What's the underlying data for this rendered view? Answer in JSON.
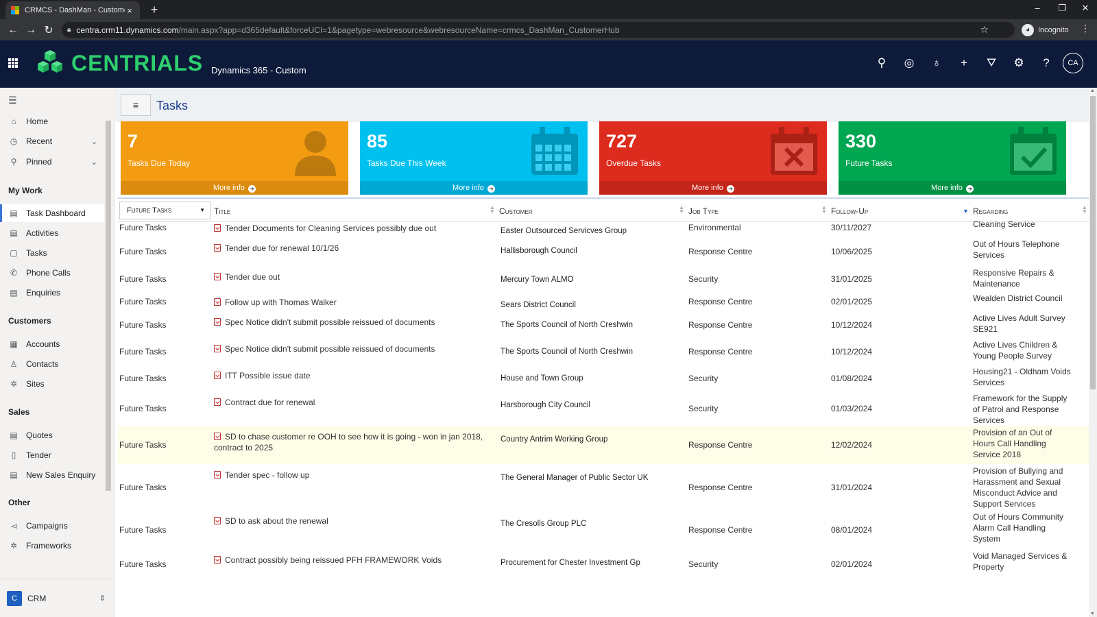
{
  "browser": {
    "tab_title": "CRMCS - DashMan - Customer H",
    "tab_close": "×",
    "new_tab": "+",
    "url_host": "centra.crm11.dynamics.com",
    "url_path": "/main.aspx?app=d365default&forceUCI=1&pagetype=webresource&webresourceName=crmcs_DashMan_CustomerHub",
    "incognito_label": "Incognito"
  },
  "header": {
    "logo_text": "CENTRIALS",
    "app_name": "Dynamics 365 - Custom",
    "user_initials": "CA",
    "brand_color": "#2ed06e",
    "icons": [
      "search-icon",
      "task-check-icon",
      "lightbulb-icon",
      "plus-icon",
      "filter-icon",
      "gear-icon",
      "help-icon"
    ]
  },
  "sidebar": {
    "top_items": [
      {
        "label": "Home",
        "icon": "home-icon"
      },
      {
        "label": "Recent",
        "icon": "clock-icon"
      },
      {
        "label": "Pinned",
        "icon": "pin-icon"
      }
    ],
    "groups": [
      {
        "title": "My Work",
        "items": [
          "Task Dashboard",
          "Activities",
          "Tasks",
          "Phone Calls",
          "Enquiries"
        ]
      },
      {
        "title": "Customers",
        "items": [
          "Accounts",
          "Contacts",
          "Sites"
        ]
      },
      {
        "title": "Sales",
        "items": [
          "Quotes",
          "Tender",
          "New Sales Enquiry"
        ]
      },
      {
        "title": "Other",
        "items": [
          "Campaigns",
          "Frameworks"
        ]
      }
    ],
    "active_item": "Task Dashboard",
    "area_badge": "C",
    "area_label": "CRM"
  },
  "page": {
    "title": "Tasks"
  },
  "tiles": [
    {
      "value": "7",
      "label": "Tasks Due Today",
      "more": "More info",
      "color": "#f39c12",
      "footer_color": "#db8c0f",
      "icon": "user-icon"
    },
    {
      "value": "85",
      "label": "Tasks Due This Week",
      "more": "More info",
      "color": "#00c0ef",
      "footer_color": "#00a8d4",
      "icon": "calendar-icon"
    },
    {
      "value": "727",
      "label": "Overdue Tasks",
      "more": "More info",
      "color": "#dd2b1d",
      "footer_color": "#c4251a",
      "icon": "calendar-x-icon"
    },
    {
      "value": "330",
      "label": "Future Tasks",
      "more": "More info",
      "color": "#00a650",
      "footer_color": "#009145",
      "icon": "calendar-check-icon"
    }
  ],
  "table": {
    "view": "Future Tasks",
    "columns": [
      "Title",
      "Customer",
      "Job Type",
      "Follow-Up",
      "Regarding"
    ],
    "rows": [
      {
        "status": "Future Tasks",
        "title": "Tender Documents for Cleaning Services possibly due out",
        "customer": "Easter Outsourced Servicves Group",
        "job_type": "Environmental",
        "follow_up": "30/11/2027",
        "regarding": "Cleaning Service"
      },
      {
        "status": "Future Tasks",
        "title": "Tender due for renewal 10/1/26",
        "customer": "Hallisborough  Council",
        "job_type": "Response Centre",
        "follow_up": "10/06/2025",
        "regarding": "Out of Hours Telephone Services"
      },
      {
        "status": "Future Tasks",
        "title": "Tender due out",
        "customer": "Mercury Town ALMO",
        "job_type": "Security",
        "follow_up": "31/01/2025",
        "regarding": "Responsive Repairs & Maintenance"
      },
      {
        "status": "Future Tasks",
        "title": "Follow up with Thomas Walker",
        "customer": "Sears District Council",
        "job_type": "Response Centre",
        "follow_up": "02/01/2025",
        "regarding": "Wealden District Council"
      },
      {
        "status": "Future Tasks",
        "title": "Spec Notice didn't submit possible reissued of documents",
        "customer": "The Sports Council of North Creshwin",
        "job_type": "Response Centre",
        "follow_up": "10/12/2024",
        "regarding": "Active Lives Adult Survey SE921"
      },
      {
        "status": "Future Tasks",
        "title": "Spec Notice didn't submit possible reissued of documents",
        "customer": "The Sports Council of North Creshwin",
        "job_type": "Response Centre",
        "follow_up": "10/12/2024",
        "regarding": "Active Lives Children & Young People Survey"
      },
      {
        "status": "Future Tasks",
        "title": "ITT Possible issue date",
        "customer": "House and Town Group",
        "job_type": "Security",
        "follow_up": "01/08/2024",
        "regarding": "Housing21 - Oldham Voids Services"
      },
      {
        "status": "Future Tasks",
        "title": "Contract due for renewal",
        "customer": "Harsborough City Council",
        "job_type": "Security",
        "follow_up": "01/03/2024",
        "regarding": "Framework for the Supply of Patrol and Response Services"
      },
      {
        "status": "Future Tasks",
        "title": "SD to chase customer re OOH to see how it is going -   won in jan 2018, contract to 2025",
        "customer": "Country Antrim Working Group",
        "job_type": "Response Centre",
        "follow_up": "12/02/2024",
        "regarding": "Provision of an Out of Hours Call Handling Service 2018"
      },
      {
        "status": "Future Tasks",
        "title": "Tender spec - follow up",
        "customer": "The General Manager of Public Sector UK",
        "job_type": "Response Centre",
        "follow_up": "31/01/2024",
        "regarding": "Provision of Bullying and Harassment and Sexual Misconduct Advice and Support Services"
      },
      {
        "status": "Future Tasks",
        "title": "SD to ask about the renewal",
        "customer": "The Cresolls Group PLC",
        "job_type": "Response Centre",
        "follow_up": "08/01/2024",
        "regarding": "Out of Hours Community Alarm Call Handling System"
      },
      {
        "status": "Future Tasks",
        "title": "Contract possibly being reissued PFH FRAMEWORK Voids",
        "customer": "Procurement for Chester Investment Gp",
        "job_type": "Security",
        "follow_up": "02/01/2024",
        "regarding": "Void Managed Services & Property"
      }
    ]
  }
}
